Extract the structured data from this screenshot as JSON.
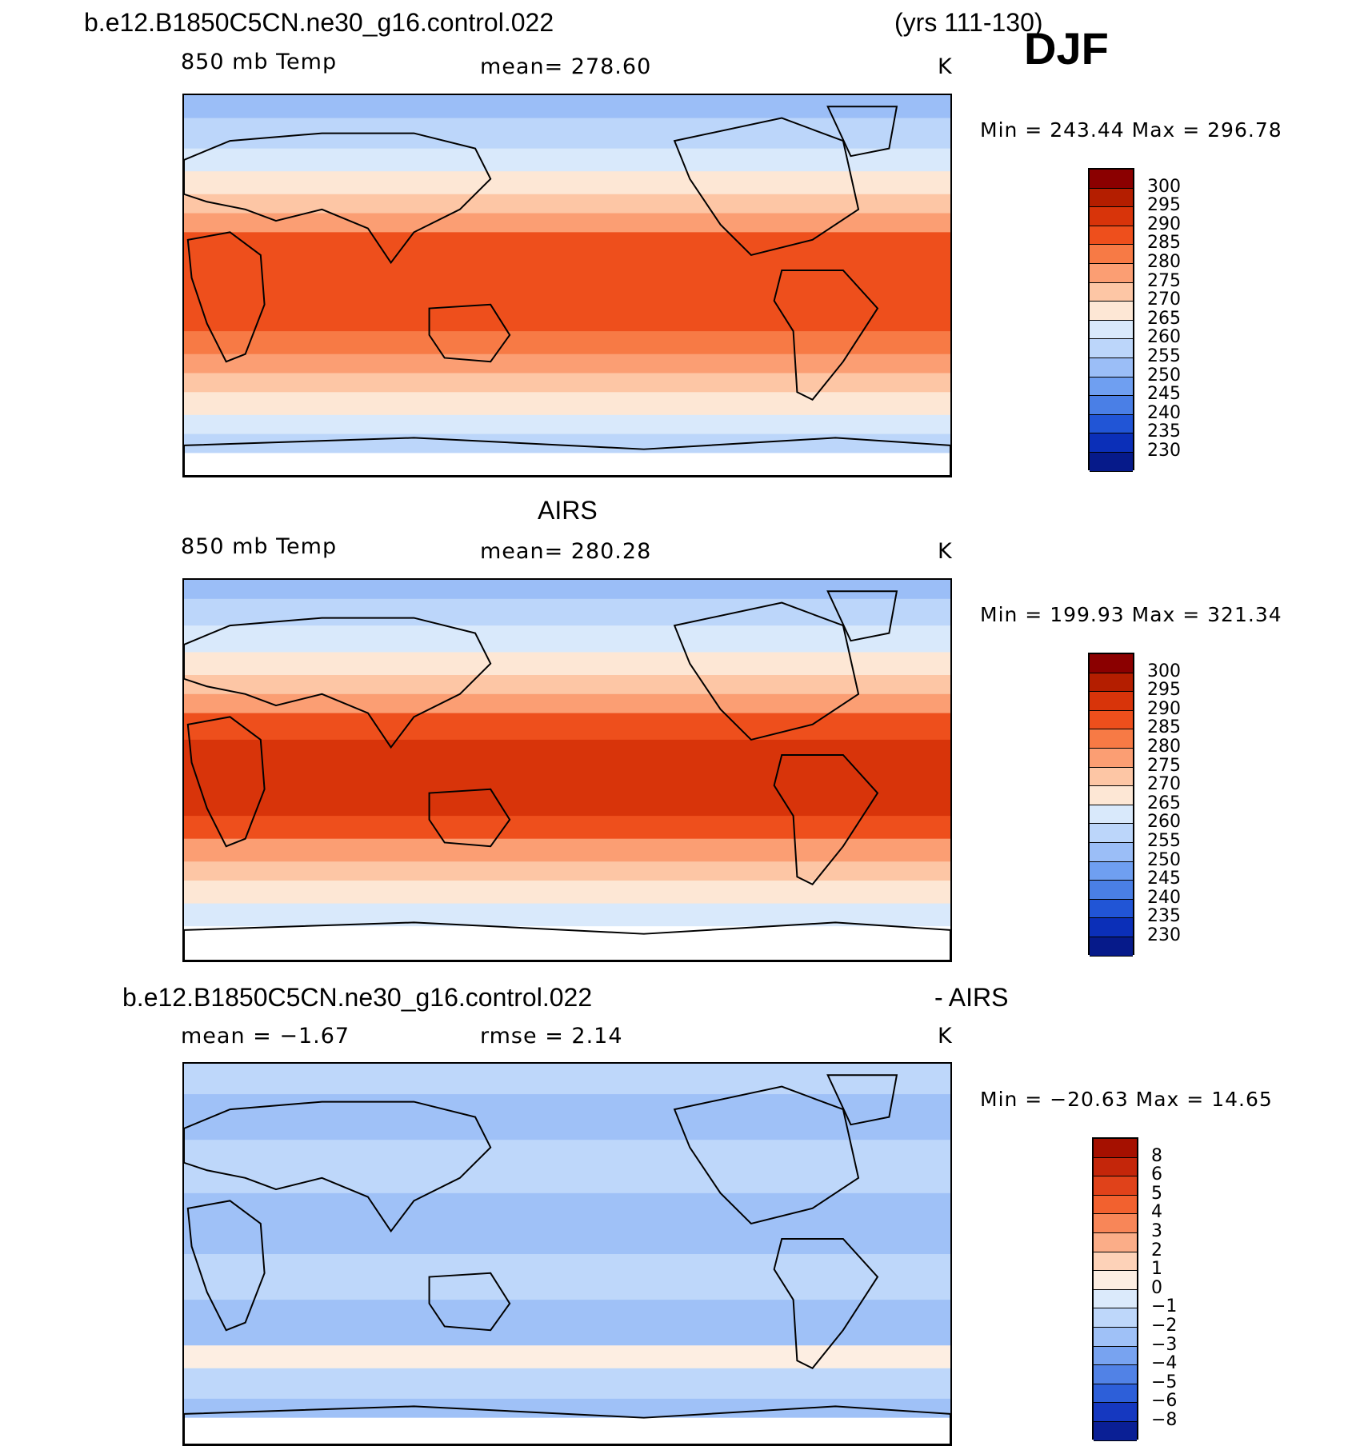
{
  "header": {
    "case_name": "b.e12.B1850C5CN.ne30_g16.control.022",
    "years": "(yrs 111-130)",
    "season": "DJF"
  },
  "obs_title": "AIRS",
  "diff_title": {
    "case_name": "b.e12.B1850C5CN.ne30_g16.control.022",
    "suffix": "- AIRS"
  },
  "chart_data": [
    {
      "type": "heatmap",
      "id": "model",
      "variable": "850 mb Temp",
      "mean_label": "mean=  278.60",
      "units": "K",
      "minmax": "Min  =  243.44  Max  =  296.78",
      "colorbar": {
        "levels": [
          "300",
          "295",
          "290",
          "285",
          "280",
          "275",
          "270",
          "265",
          "260",
          "255",
          "250",
          "245",
          "240",
          "235",
          "230"
        ],
        "colors": [
          "#8b0000",
          "#b41e00",
          "#d8340a",
          "#ee4f1c",
          "#f77a45",
          "#fb9e73",
          "#fdc6a5",
          "#fde7d5",
          "#d9e9fb",
          "#bcd6fa",
          "#9bbef7",
          "#6f9ff1",
          "#4a7fe6",
          "#2155d6",
          "#0b2fb8",
          "#061a8a"
        ]
      }
    },
    {
      "type": "heatmap",
      "id": "obs",
      "variable": "850 mb Temp",
      "mean_label": "mean=  280.28",
      "units": "K",
      "minmax": "Min  =  199.93  Max  =  321.34",
      "colorbar": {
        "levels": [
          "300",
          "295",
          "290",
          "285",
          "280",
          "275",
          "270",
          "265",
          "260",
          "255",
          "250",
          "245",
          "240",
          "235",
          "230"
        ],
        "colors": [
          "#8b0000",
          "#b41e00",
          "#d8340a",
          "#ee4f1c",
          "#f77a45",
          "#fb9e73",
          "#fdc6a5",
          "#fde7d5",
          "#d9e9fb",
          "#bcd6fa",
          "#9bbef7",
          "#6f9ff1",
          "#4a7fe6",
          "#2155d6",
          "#0b2fb8",
          "#061a8a"
        ]
      }
    },
    {
      "type": "heatmap",
      "id": "diff",
      "mean_label": "mean =    −1.67",
      "rmse_label": "rmse =     2.14",
      "units": "K",
      "minmax": "Min  =  −20.63  Max  =    14.65",
      "colorbar": {
        "levels": [
          "8",
          "6",
          "5",
          "4",
          "3",
          "2",
          "1",
          "0",
          "−1",
          "−2",
          "−3",
          "−4",
          "−5",
          "−6",
          "−8"
        ],
        "colors": [
          "#a51000",
          "#c4260a",
          "#e0421a",
          "#f2612f",
          "#f88658",
          "#fbad88",
          "#fdd2b8",
          "#fdeee2",
          "#dbeafb",
          "#bed7fa",
          "#9fc1f7",
          "#78a3f0",
          "#5182e6",
          "#2d5fd9",
          "#1538c0",
          "#0a1f95"
        ]
      }
    }
  ]
}
